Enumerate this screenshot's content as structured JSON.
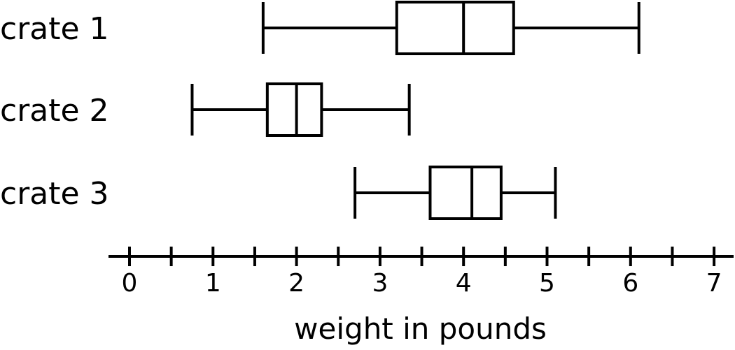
{
  "chart_data": {
    "type": "boxplot",
    "orientation": "horizontal",
    "xlabel": "weight in pounds",
    "xlim": [
      0,
      7
    ],
    "x_ticks": [
      0,
      1,
      2,
      3,
      4,
      5,
      6,
      7
    ],
    "x_minor_ticks": [
      0.5,
      1.5,
      2.5,
      3.5,
      4.5,
      5.5,
      6.5
    ],
    "series": [
      {
        "name": "crate 1",
        "min": 1.6,
        "q1": 3.2,
        "median": 4.0,
        "q3": 4.6,
        "max": 6.1
      },
      {
        "name": "crate 2",
        "min": 0.75,
        "q1": 1.65,
        "median": 2.0,
        "q3": 2.3,
        "max": 3.35
      },
      {
        "name": "crate 3",
        "min": 2.7,
        "q1": 3.6,
        "median": 4.1,
        "q3": 4.45,
        "max": 5.1
      }
    ]
  }
}
